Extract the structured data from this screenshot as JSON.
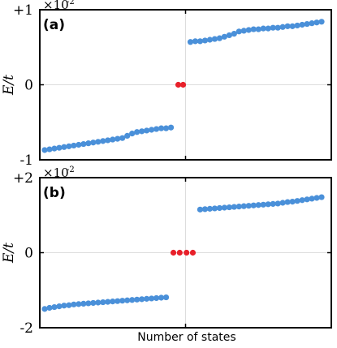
{
  "chart_data": [
    {
      "type": "scatter",
      "panel_label": "(a)",
      "ylabel": "E/t",
      "y_scale_prefix": "×10",
      "y_scale_exp": "-2",
      "ylim": [
        -1.0,
        1.0
      ],
      "yticks": [
        {
          "value": 1.0,
          "label": "+1"
        },
        {
          "value": 0.0,
          "label": "0"
        },
        {
          "value": -1.0,
          "label": "-1"
        }
      ],
      "xlim": [
        0,
        60
      ],
      "grid": true,
      "series": [
        {
          "color": "#4a90d9",
          "x": [
            1,
            2,
            3,
            4,
            5,
            6,
            7,
            8,
            9,
            10,
            11,
            12,
            13,
            14,
            15,
            16,
            17,
            18,
            19,
            20,
            21,
            22,
            23,
            24,
            25,
            26,
            27
          ],
          "y": [
            -0.87,
            -0.86,
            -0.85,
            -0.84,
            -0.83,
            -0.82,
            -0.81,
            -0.8,
            -0.79,
            -0.78,
            -0.77,
            -0.76,
            -0.75,
            -0.74,
            -0.73,
            -0.72,
            -0.71,
            -0.68,
            -0.65,
            -0.63,
            -0.62,
            -0.61,
            -0.6,
            -0.59,
            -0.58,
            -0.58,
            -0.57
          ]
        },
        {
          "color": "#e8202a",
          "x": [
            28.5,
            29.5
          ],
          "y": [
            0.0,
            0.0
          ]
        },
        {
          "color": "#4a90d9",
          "x": [
            31,
            32,
            33,
            34,
            35,
            36,
            37,
            38,
            39,
            40,
            41,
            42,
            43,
            44,
            45,
            46,
            47,
            48,
            49,
            50,
            51,
            52,
            53,
            54,
            55,
            56,
            57,
            58
          ],
          "y": [
            0.57,
            0.58,
            0.58,
            0.59,
            0.6,
            0.61,
            0.62,
            0.64,
            0.66,
            0.68,
            0.71,
            0.72,
            0.73,
            0.74,
            0.74,
            0.75,
            0.75,
            0.76,
            0.76,
            0.77,
            0.78,
            0.78,
            0.79,
            0.8,
            0.81,
            0.82,
            0.83,
            0.84
          ]
        }
      ]
    },
    {
      "type": "scatter",
      "panel_label": "(b)",
      "ylabel": "E/t",
      "y_scale_prefix": "×10",
      "y_scale_exp": "-2",
      "ylim": [
        -2.0,
        2.0
      ],
      "yticks": [
        {
          "value": 2.0,
          "label": "+2"
        },
        {
          "value": 0.0,
          "label": "0"
        },
        {
          "value": -2.0,
          "label": "-2"
        }
      ],
      "xlim": [
        0,
        60
      ],
      "xlabel": "Number of states",
      "grid": true,
      "series": [
        {
          "color": "#4a90d9",
          "x": [
            1,
            2,
            3,
            4,
            5,
            6,
            7,
            8,
            9,
            10,
            11,
            12,
            13,
            14,
            15,
            16,
            17,
            18,
            19,
            20,
            21,
            22,
            23,
            24,
            25,
            26
          ],
          "y": [
            -1.5,
            -1.47,
            -1.45,
            -1.43,
            -1.41,
            -1.4,
            -1.38,
            -1.37,
            -1.36,
            -1.35,
            -1.34,
            -1.33,
            -1.32,
            -1.31,
            -1.3,
            -1.29,
            -1.28,
            -1.27,
            -1.26,
            -1.25,
            -1.24,
            -1.23,
            -1.22,
            -1.21,
            -1.2,
            -1.19
          ]
        },
        {
          "color": "#e8202a",
          "x": [
            27.5,
            28.8,
            30.2,
            31.5
          ],
          "y": [
            0.0,
            0.0,
            0.0,
            0.0
          ]
        },
        {
          "color": "#4a90d9",
          "x": [
            33,
            34,
            35,
            36,
            37,
            38,
            39,
            40,
            41,
            42,
            43,
            44,
            45,
            46,
            47,
            48,
            49,
            50,
            51,
            52,
            53,
            54,
            55,
            56,
            57,
            58
          ],
          "y": [
            1.15,
            1.16,
            1.17,
            1.18,
            1.19,
            1.2,
            1.21,
            1.22,
            1.23,
            1.24,
            1.25,
            1.26,
            1.27,
            1.28,
            1.29,
            1.3,
            1.31,
            1.33,
            1.35,
            1.36,
            1.38,
            1.4,
            1.42,
            1.44,
            1.46,
            1.48
          ]
        }
      ]
    }
  ]
}
